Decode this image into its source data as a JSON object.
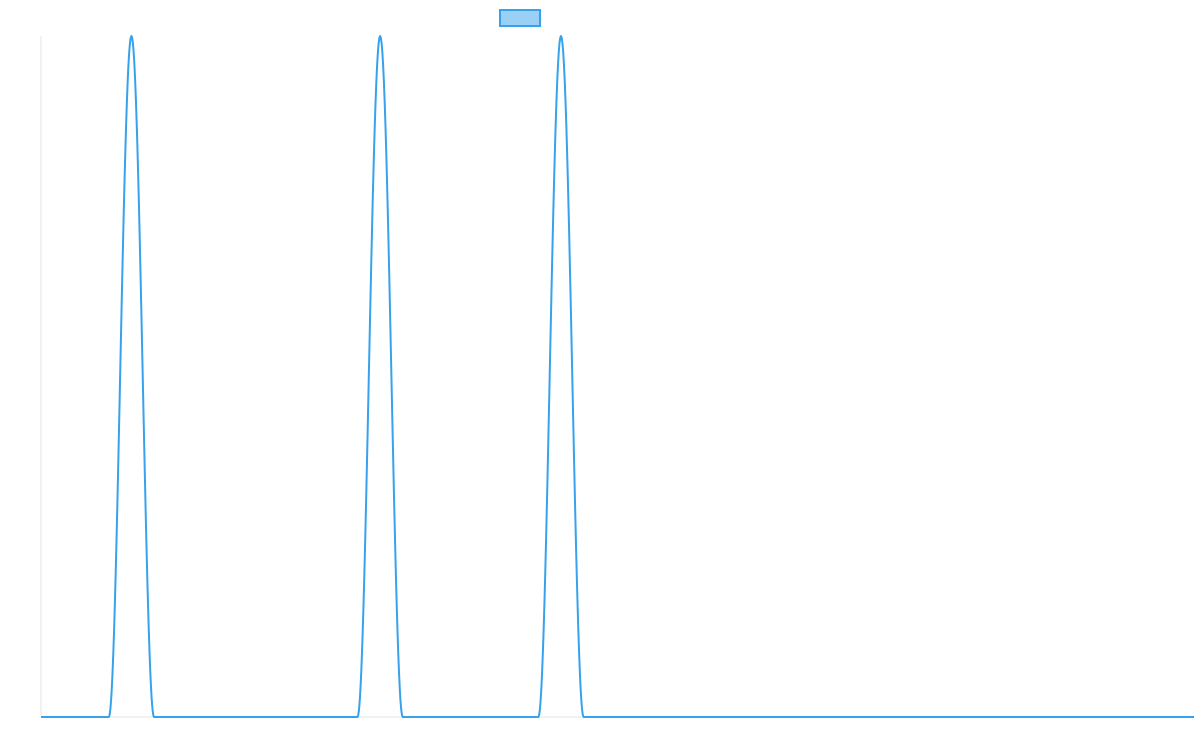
{
  "chart_data": {
    "type": "line",
    "title": "",
    "xlabel": "",
    "ylabel": "",
    "legend": {
      "placement": "top-center",
      "label": ""
    },
    "grid": false,
    "xlim": [
      0,
      102
    ],
    "ylim": [
      0,
      1
    ],
    "series": [
      {
        "color": "#36a2eb",
        "fill_color": "#9ad0f5",
        "x": [
          0,
          6,
          8,
          10,
          22,
          28,
          30,
          32,
          38,
          44,
          46,
          48,
          54,
          102
        ],
        "y": [
          0,
          0,
          1,
          0,
          0,
          0,
          1,
          0,
          0,
          0,
          1,
          0,
          0,
          0
        ],
        "peak_shape": "smooth"
      }
    ]
  }
}
